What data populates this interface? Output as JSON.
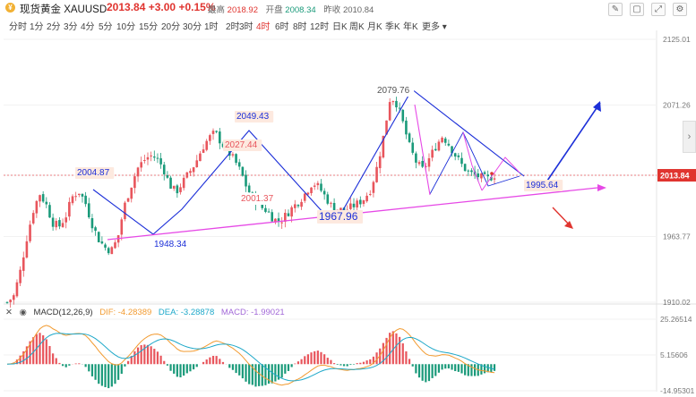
{
  "header": {
    "icon": "gold-coin-icon",
    "title": "现货黄金 XAUUSD",
    "last_price": "2013.84",
    "change": "+3.00",
    "change_pct": "+0.15%",
    "high_label": "最高",
    "high_value": "2018.92",
    "open_label": "开盘",
    "open_value": "2008.34",
    "prev_close_label": "昨收",
    "prev_close_value": "2010.84",
    "tools": [
      "draw-line-icon",
      "edit-icon",
      "fullscreen-icon",
      "settings-icon"
    ]
  },
  "periods": {
    "items": [
      "分时",
      "1分",
      "2分",
      "3分",
      "4分",
      "5分",
      "10分",
      "15分",
      "20分",
      "30分",
      "1时",
      "2时",
      "3时",
      "4时",
      "6时",
      "8时",
      "12时",
      "日K",
      "周K",
      "月K",
      "季K",
      "年K",
      "更多"
    ],
    "active": "4时"
  },
  "chart": {
    "price_axis": [
      "2125.01",
      "2071.26",
      "2013.84",
      "1963.77",
      "1910.02"
    ],
    "current_price": "2013.84",
    "annotations": [
      "2004.87",
      "1948.34",
      "2049.43",
      "2027.44",
      "2001.37",
      "1967.96",
      "2079.76",
      "1995.64"
    ],
    "colors": {
      "up": "#e8555c",
      "down": "#1a9a7a",
      "trend_blue": "#1c2fd8",
      "support_magenta": "#e649e6"
    }
  },
  "macd": {
    "close_icon": "close-icon",
    "label": "MACD(12,26,9)",
    "dif": "DIF: -4.28389",
    "dea": "DEA: -3.28878",
    "macd": "MACD: -1.99021",
    "axis": [
      "25.26514",
      "5.15606",
      "-14.95301"
    ]
  },
  "chart_data": {
    "type": "candlestick",
    "title": "现货黄金 XAUUSD",
    "ylim": [
      1910.02,
      2125.01
    ],
    "y_ticks": [
      2125.01,
      2071.26,
      2013.84,
      1963.77,
      1910.02
    ],
    "current_price": 2013.84,
    "annotated_levels": [
      2004.87,
      1948.34,
      2049.43,
      2027.44,
      2001.37,
      1967.96,
      2079.76,
      1995.64
    ],
    "close_path": [
      1910,
      1915,
      1935,
      1962,
      1985,
      1999,
      1990,
      1975,
      1972,
      1980,
      1996,
      2001,
      1992,
      1975,
      1962,
      1955,
      1952,
      1962,
      1988,
      2004,
      2019,
      2026,
      2030,
      2028,
      2020,
      2006,
      2000,
      2008,
      2016,
      2024,
      2036,
      2044,
      2049,
      2040,
      2033,
      2026,
      2016,
      2002,
      1995,
      1988,
      1985,
      1978,
      1976,
      1982,
      1988,
      1993,
      2000,
      2008,
      2004,
      1996,
      1988,
      1986,
      1985,
      1988,
      1991,
      1995,
      2003,
      2022,
      2048,
      2079,
      2072,
      2055,
      2036,
      2024,
      2018,
      2028,
      2038,
      2046,
      2039,
      2030,
      2022,
      2016,
      2014,
      2012,
      2011,
      2014
    ],
    "macd_indicator": {
      "params": [
        12,
        26,
        9
      ],
      "DIF": -4.28389,
      "DEA": -3.28878,
      "MACD": -1.99021
    },
    "macd_axis": [
      25.26514,
      5.15606,
      -14.95301
    ]
  }
}
